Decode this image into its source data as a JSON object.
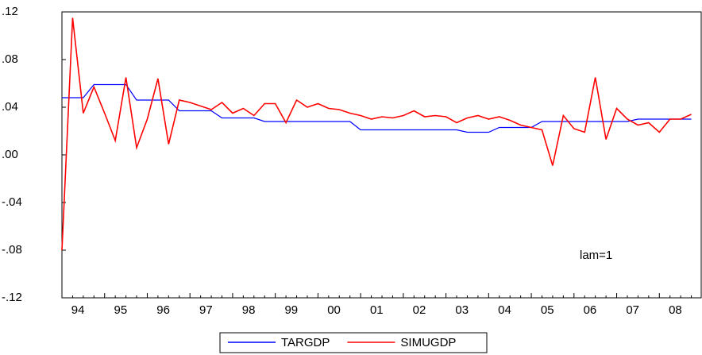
{
  "chart_data": {
    "type": "line",
    "categories": [
      "94",
      null,
      null,
      null,
      "95",
      null,
      null,
      null,
      "96",
      null,
      null,
      null,
      "97",
      null,
      null,
      null,
      "98",
      null,
      null,
      null,
      "99",
      null,
      null,
      null,
      "00",
      null,
      null,
      null,
      "01",
      null,
      null,
      null,
      "02",
      null,
      null,
      null,
      "03",
      null,
      null,
      null,
      "04",
      null,
      null,
      null,
      "05",
      null,
      null,
      null,
      "06",
      null,
      null,
      null,
      "07",
      null,
      null,
      null,
      "08",
      null,
      null,
      null
    ],
    "series": [
      {
        "name": "TARGDP",
        "color": "#0000ff",
        "values": [
          0.048,
          0.048,
          0.048,
          0.059,
          0.059,
          0.059,
          0.059,
          0.046,
          0.046,
          0.046,
          0.046,
          0.037,
          0.037,
          0.037,
          0.037,
          0.031,
          0.031,
          0.031,
          0.031,
          0.028,
          0.028,
          0.028,
          0.028,
          0.028,
          0.028,
          0.028,
          0.028,
          0.028,
          0.021,
          0.021,
          0.021,
          0.021,
          0.021,
          0.021,
          0.021,
          0.021,
          0.021,
          0.021,
          0.019,
          0.019,
          0.019,
          0.023,
          0.023,
          0.023,
          0.023,
          0.028,
          0.028,
          0.028,
          0.028,
          0.028,
          0.028,
          0.028,
          0.028,
          0.028,
          0.03,
          0.03,
          0.03,
          0.03,
          0.03,
          0.03
        ]
      },
      {
        "name": "SIMUGDP",
        "color": "#ff0000",
        "values": [
          -0.08,
          0.115,
          0.035,
          0.057,
          0.035,
          0.012,
          0.065,
          0.006,
          0.03,
          0.064,
          0.009,
          0.046,
          0.044,
          0.041,
          0.038,
          0.044,
          0.035,
          0.039,
          0.033,
          0.043,
          0.043,
          0.027,
          0.046,
          0.04,
          0.043,
          0.039,
          0.038,
          0.035,
          0.033,
          0.03,
          0.032,
          0.031,
          0.033,
          0.037,
          0.032,
          0.033,
          0.032,
          0.027,
          0.031,
          0.033,
          0.03,
          0.032,
          0.029,
          0.025,
          0.023,
          0.021,
          -0.009,
          0.033,
          0.022,
          0.019,
          0.065,
          0.013,
          0.039,
          0.03,
          0.025,
          0.027,
          0.019,
          0.03,
          0.03,
          0.034
        ]
      }
    ],
    "ylim": [
      -0.12,
      0.12
    ],
    "yticks": [
      {
        "value": -0.12,
        "label": "-.12"
      },
      {
        "value": -0.08,
        "label": "-.08"
      },
      {
        "value": -0.04,
        "label": "-.04"
      },
      {
        "value": 0,
        "label": ".00"
      },
      {
        "value": 0.04,
        "label": ".04"
      },
      {
        "value": 0.08,
        "label": ".08"
      },
      {
        "value": 0.12,
        "label": ".12"
      }
    ],
    "annotation": "lam=1",
    "legend": "bottom"
  }
}
